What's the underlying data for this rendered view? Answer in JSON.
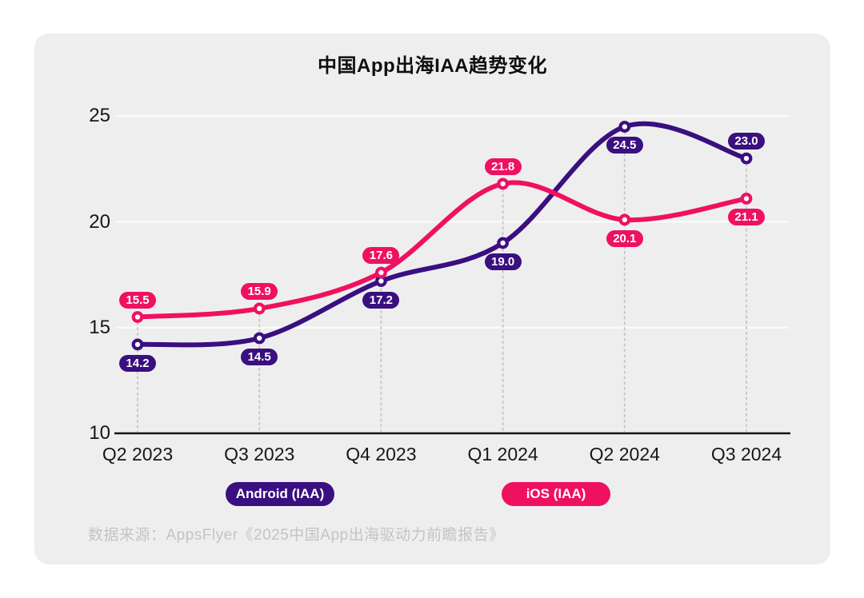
{
  "title": "中国App出海IAA趋势变化",
  "source": "数据来源：AppsFlyer《2025中国App出海驱动力前瞻报告》",
  "colors": {
    "android": "#3a0f80",
    "ios": "#ef1160",
    "card_background": "#efeeef",
    "axis_text": "#161616",
    "axis_line": "#141414",
    "gridline": "#fbfbfb",
    "column_guide": "#c8c8c8",
    "source_text": "#c5c3c4"
  },
  "legend": [
    {
      "label": "Android (IAA)",
      "color": "#3a0f80"
    },
    {
      "label": "iOS (IAA)",
      "color": "#ef1160"
    }
  ],
  "chart_data": {
    "type": "line",
    "title": "中国App出海IAA趋势变化",
    "categories": [
      "Q2 2023",
      "Q3 2023",
      "Q4 2023",
      "Q1 2024",
      "Q2 2024",
      "Q3 2024"
    ],
    "series": [
      {
        "name": "Android (IAA)",
        "color": "#3a0f80",
        "values": [
          14.2,
          14.5,
          17.2,
          19.0,
          24.5,
          23.0
        ],
        "label_side": [
          "down",
          "down",
          "down",
          "down",
          "down",
          "up"
        ]
      },
      {
        "name": "iOS (IAA)",
        "color": "#ef1160",
        "values": [
          15.5,
          15.9,
          17.6,
          21.8,
          20.1,
          21.1
        ],
        "label_side": [
          "up",
          "up",
          "up",
          "up",
          "down",
          "down"
        ]
      }
    ],
    "xlabel": "",
    "ylabel": "",
    "ylim": [
      10,
      26
    ],
    "yticks": [
      10,
      15,
      20,
      25
    ],
    "grid": "horizontal white gridlines at 15/20/25; dotted vertical guides under each data column; solid black baseline at 10",
    "smooth": true,
    "markers": "open circles",
    "data_labels": "pill badges on every point, one decimal",
    "legend_position": "bottom"
  }
}
